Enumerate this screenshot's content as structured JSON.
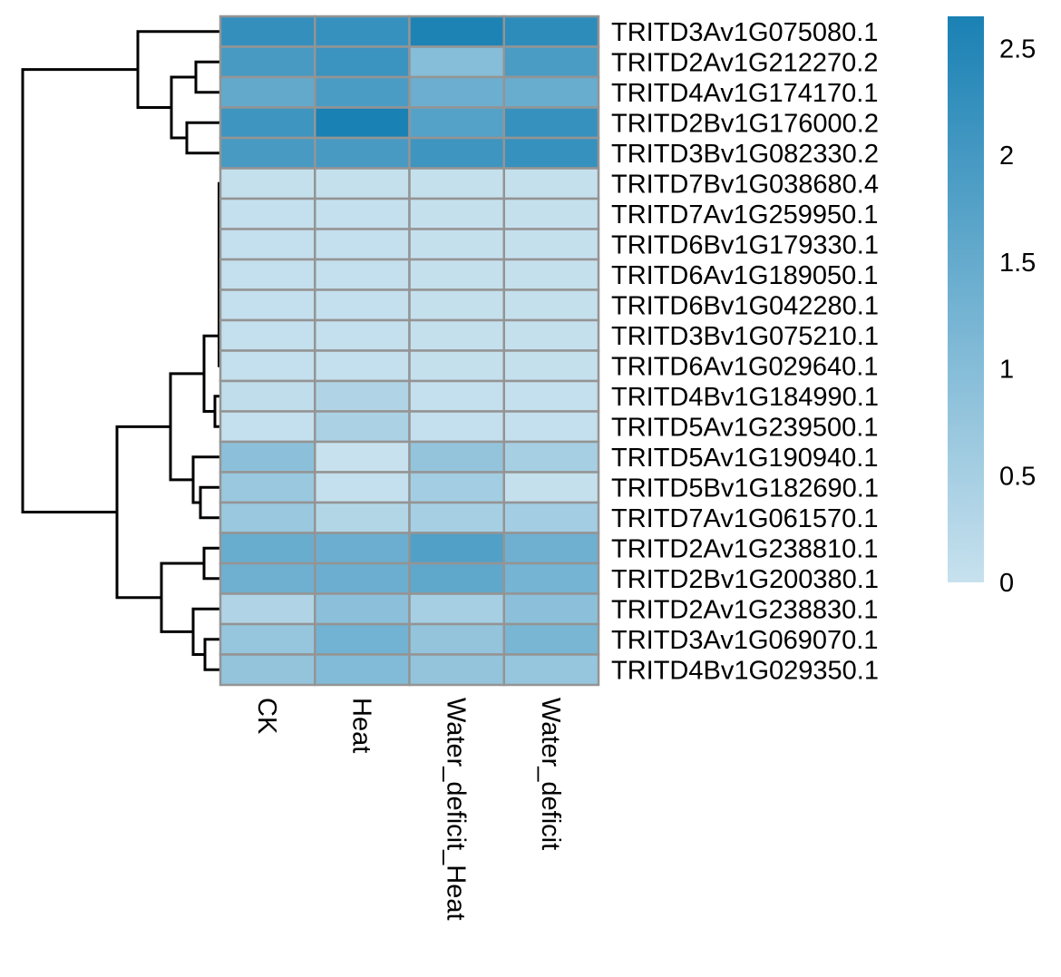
{
  "chart_data": {
    "type": "heatmap",
    "title": "",
    "xlabel": "",
    "ylabel": "",
    "columns": [
      "CK",
      "Heat",
      "Water_deficit_Heat",
      "Water_deficit"
    ],
    "rows": [
      "TRITD3Av1G075080.1",
      "TRITD2Av1G212270.2",
      "TRITD4Av1G174170.1",
      "TRITD2Bv1G176000.2",
      "TRITD3Bv1G082330.2",
      "TRITD7Bv1G038680.4",
      "TRITD7Av1G259950.1",
      "TRITD6Bv1G179330.1",
      "TRITD6Av1G189050.1",
      "TRITD6Bv1G042280.1",
      "TRITD3Bv1G075210.1",
      "TRITD6Av1G029640.1",
      "TRITD4Bv1G184990.1",
      "TRITD5Av1G239500.1",
      "TRITD5Av1G190940.1",
      "TRITD5Bv1G182690.1",
      "TRITD7Av1G061570.1",
      "TRITD2Av1G238810.1",
      "TRITD2Bv1G200380.1",
      "TRITD2Av1G238830.1",
      "TRITD3Av1G069070.1",
      "TRITD4Bv1G029350.1"
    ],
    "values": [
      [
        2.25,
        2.2,
        2.6,
        2.35
      ],
      [
        1.95,
        2.15,
        1.0,
        1.9
      ],
      [
        1.55,
        1.9,
        1.4,
        1.45
      ],
      [
        2.1,
        2.65,
        1.75,
        2.2
      ],
      [
        1.95,
        1.95,
        2.1,
        2.2
      ],
      [
        0.03,
        0.03,
        0.03,
        0.03
      ],
      [
        0.05,
        0.05,
        0.03,
        0.03
      ],
      [
        0.05,
        0.05,
        0.03,
        0.03
      ],
      [
        0.05,
        0.05,
        0.03,
        0.03
      ],
      [
        0.05,
        0.05,
        0.03,
        0.03
      ],
      [
        0.05,
        0.05,
        0.03,
        0.03
      ],
      [
        0.05,
        0.05,
        0.03,
        0.03
      ],
      [
        0.1,
        0.35,
        0.05,
        0.05
      ],
      [
        0.05,
        0.45,
        0.05,
        0.05
      ],
      [
        0.9,
        0.0,
        0.8,
        0.5
      ],
      [
        0.7,
        0.05,
        0.55,
        0.03
      ],
      [
        0.7,
        0.3,
        0.5,
        0.55
      ],
      [
        1.45,
        1.4,
        1.8,
        1.35
      ],
      [
        1.35,
        1.4,
        1.6,
        1.25
      ],
      [
        0.35,
        0.9,
        0.5,
        0.9
      ],
      [
        0.75,
        1.3,
        0.8,
        1.2
      ],
      [
        0.8,
        1.05,
        0.8,
        0.75
      ]
    ],
    "colorscale": {
      "min": 0,
      "max": 2.65,
      "low_color": "#c7e1ee",
      "high_color": "#1a81b4",
      "ticks": [
        0,
        0.5,
        1,
        1.5,
        2,
        2.5
      ],
      "tick_labels": [
        "0",
        "0.5",
        "1",
        "1.5",
        "2",
        "2.5"
      ]
    },
    "cell_border_color": "#949494",
    "row_dendrogram": true,
    "legend_position": "top-right"
  }
}
